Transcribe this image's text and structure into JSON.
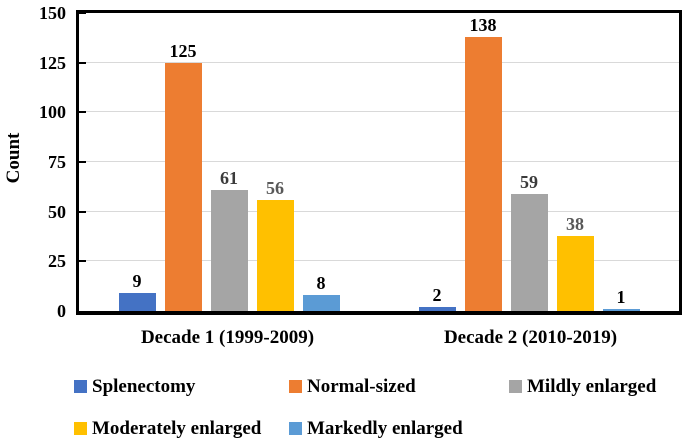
{
  "chart_data": {
    "type": "bar",
    "title": "",
    "ylabel": "Count",
    "xlabel": "",
    "ylim": [
      0,
      150
    ],
    "yticks": [
      0,
      25,
      50,
      75,
      100,
      125,
      150
    ],
    "gridlines": [
      25,
      50,
      75,
      100,
      125
    ],
    "grid": "horizontal",
    "legend_position": "bottom",
    "data_labels": true,
    "categories": [
      "Decade 1 (1999-2009)",
      "Decade 2 (2010-2019)"
    ],
    "series": [
      {
        "name": "Splenectomy",
        "color": "#4472c4",
        "label_color": "#000000",
        "values": [
          9,
          2
        ]
      },
      {
        "name": "Normal-sized",
        "color": "#ed7d31",
        "label_color": "#000000",
        "values": [
          125,
          138
        ]
      },
      {
        "name": "Mildly enlarged",
        "color": "#a5a5a5",
        "label_color": "#3b3b3b",
        "values": [
          61,
          59
        ]
      },
      {
        "name": "Moderately enlarged",
        "color": "#ffc000",
        "label_color": "#595959",
        "values": [
          56,
          38
        ]
      },
      {
        "name": "Markedly enlarged",
        "color": "#5b9bd5",
        "label_color": "#000000",
        "values": [
          8,
          1
        ]
      }
    ],
    "colors": {
      "axis": "#000000",
      "gridline": "#d9d9d9",
      "background": "#ffffff"
    }
  }
}
